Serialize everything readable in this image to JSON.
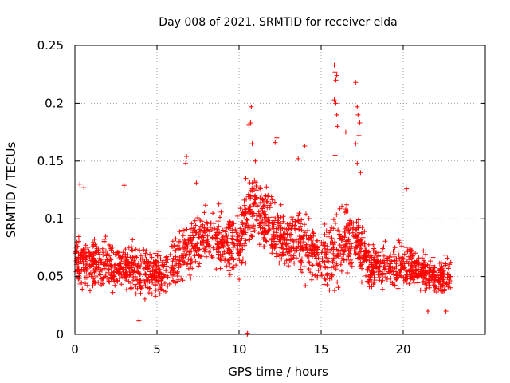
{
  "chart_data": {
    "type": "scatter",
    "title": "Day 008 of 2021, SRMTID for receiver elda",
    "xlabel": "GPS time / hours",
    "ylabel": "SRMTID / TECUs",
    "xlim": [
      0,
      25
    ],
    "ylim": [
      0,
      0.25
    ],
    "xticks": [
      0,
      5,
      10,
      15,
      20
    ],
    "xtick_labels": [
      "0",
      "5",
      "10",
      "15",
      "20"
    ],
    "yticks": [
      0,
      0.05,
      0.1,
      0.15,
      0.2,
      0.25
    ],
    "ytick_labels": [
      "0",
      "0.05",
      "0.1",
      "0.15",
      "0.2",
      "0.25"
    ],
    "grid": true,
    "marker": "+",
    "color": "#ff0000",
    "x_extent_hours": [
      0,
      22.9
    ],
    "points_per_hour": 90,
    "envelope": {
      "hours": [
        0,
        1,
        2,
        3,
        4,
        5,
        6,
        7,
        8,
        9,
        10,
        10.5,
        11,
        12,
        13,
        14,
        15,
        16,
        17,
        18,
        19,
        20,
        21,
        22,
        23
      ],
      "center": [
        0.065,
        0.062,
        0.06,
        0.058,
        0.055,
        0.052,
        0.058,
        0.075,
        0.085,
        0.08,
        0.075,
        0.105,
        0.11,
        0.09,
        0.08,
        0.078,
        0.065,
        0.075,
        0.085,
        0.06,
        0.058,
        0.06,
        0.055,
        0.05,
        0.05
      ],
      "spread": [
        0.022,
        0.025,
        0.025,
        0.025,
        0.023,
        0.022,
        0.025,
        0.028,
        0.028,
        0.03,
        0.03,
        0.04,
        0.035,
        0.03,
        0.03,
        0.03,
        0.03,
        0.04,
        0.035,
        0.025,
        0.022,
        0.02,
        0.02,
        0.018,
        0.018
      ]
    },
    "peak_points": [
      {
        "x": 0.3,
        "y": 0.13
      },
      {
        "x": 0.55,
        "y": 0.127
      },
      {
        "x": 3.0,
        "y": 0.129
      },
      {
        "x": 6.8,
        "y": 0.154
      },
      {
        "x": 6.75,
        "y": 0.148
      },
      {
        "x": 7.4,
        "y": 0.131
      },
      {
        "x": 10.6,
        "y": 0.181
      },
      {
        "x": 10.7,
        "y": 0.183
      },
      {
        "x": 10.75,
        "y": 0.197
      },
      {
        "x": 10.8,
        "y": 0.165
      },
      {
        "x": 11.0,
        "y": 0.15
      },
      {
        "x": 12.2,
        "y": 0.166
      },
      {
        "x": 12.3,
        "y": 0.17
      },
      {
        "x": 13.6,
        "y": 0.152
      },
      {
        "x": 14.0,
        "y": 0.163
      },
      {
        "x": 15.8,
        "y": 0.233
      },
      {
        "x": 15.85,
        "y": 0.227
      },
      {
        "x": 15.9,
        "y": 0.22
      },
      {
        "x": 15.95,
        "y": 0.224
      },
      {
        "x": 15.8,
        "y": 0.203
      },
      {
        "x": 15.9,
        "y": 0.2
      },
      {
        "x": 15.95,
        "y": 0.19
      },
      {
        "x": 16.0,
        "y": 0.18
      },
      {
        "x": 15.85,
        "y": 0.155
      },
      {
        "x": 17.1,
        "y": 0.218
      },
      {
        "x": 17.2,
        "y": 0.197
      },
      {
        "x": 17.25,
        "y": 0.19
      },
      {
        "x": 17.35,
        "y": 0.183
      },
      {
        "x": 17.1,
        "y": 0.165
      },
      {
        "x": 17.3,
        "y": 0.172
      },
      {
        "x": 17.2,
        "y": 0.148
      },
      {
        "x": 17.4,
        "y": 0.14
      },
      {
        "x": 16.5,
        "y": 0.175
      },
      {
        "x": 20.2,
        "y": 0.126
      }
    ],
    "low_points": [
      {
        "x": 10.5,
        "y": 0.0
      },
      {
        "x": 10.52,
        "y": 0.001
      },
      {
        "x": 3.9,
        "y": 0.012
      },
      {
        "x": 21.5,
        "y": 0.02
      },
      {
        "x": 22.6,
        "y": 0.02
      }
    ]
  }
}
